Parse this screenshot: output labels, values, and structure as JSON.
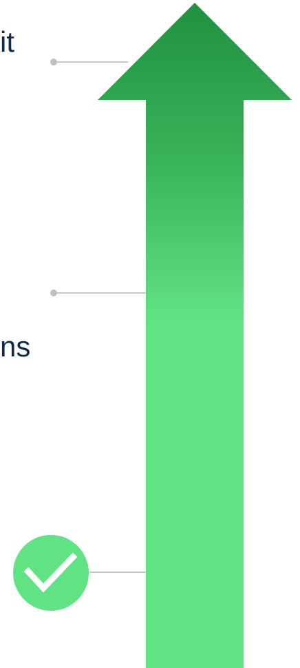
{
  "labels": {
    "top_fragment": "it",
    "middle_fragment": "ns"
  },
  "colors": {
    "arrow_top": "#1f9140",
    "arrow_mid": "#4fce6e",
    "arrow_bottom": "#61e383",
    "connector": "#c8c8c8",
    "dot": "#c0c0c0",
    "check_circle": "#61e383",
    "check_mark": "#ffffff",
    "text": "#0f2a4a"
  },
  "icons": {
    "status": "check-circle-icon",
    "arrow": "up-arrow-icon"
  }
}
